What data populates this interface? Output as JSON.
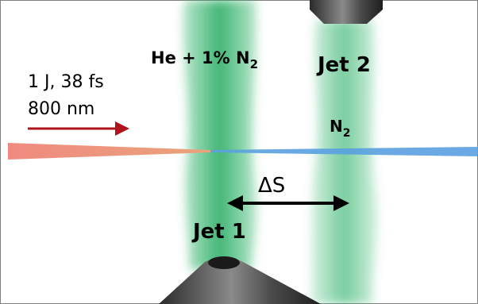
{
  "labels": {
    "jet1_gas": {
      "text": "He + 1% N",
      "subscript": "2"
    },
    "jet2": "Jet 2",
    "laser_energy": "1 J, 38 fs",
    "laser_wavelength": "800 nm",
    "jet2_gas": {
      "text": "N",
      "subscript": "2"
    },
    "separation": "ΔS",
    "jet1": "Jet 1"
  }
}
